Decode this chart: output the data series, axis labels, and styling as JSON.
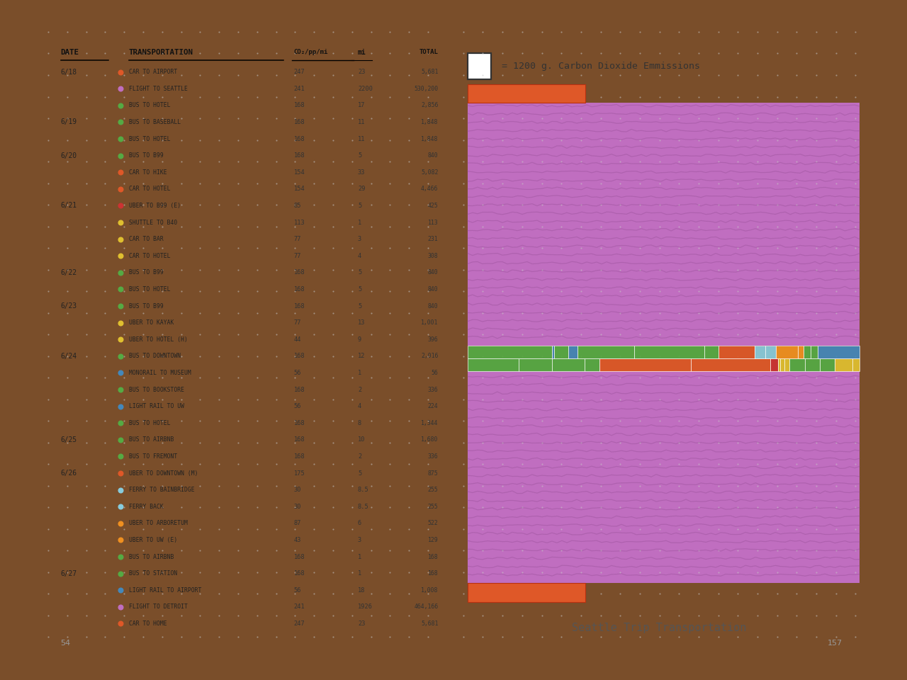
{
  "title": "= 1200 g. Carbon Dioxide Emmissions",
  "subtitle": "Seattle Trip Transportation",
  "page_left": "54",
  "page_right": "157",
  "wood_color": "#7a4e2a",
  "journal_bg": "#f7f6f2",
  "purple_fill": "#c06ec0",
  "purple_mid": "#a855a8",
  "purple_dark": "#884488",
  "orange_red": "#df5828",
  "trips": [
    {
      "date": "6/18",
      "transport": "CAR TO AIRPORT",
      "co2_mi": 247,
      "miles": 23,
      "total": 5681,
      "color": "#df5828"
    },
    {
      "date": "6/18",
      "transport": "FLIGHT TO SEATTLE",
      "co2_mi": 241,
      "miles": 2200,
      "total": 530200,
      "color": "#c06ec0"
    },
    {
      "date": "6/18",
      "transport": "BUS TO HOTEL",
      "co2_mi": 168,
      "miles": 17,
      "total": 2856,
      "color": "#55aa44"
    },
    {
      "date": "6/19",
      "transport": "BUS TO BASEBALL",
      "co2_mi": 168,
      "miles": 11,
      "total": 1848,
      "color": "#55aa44"
    },
    {
      "date": "6/19",
      "transport": "BUS TO HOTEL",
      "co2_mi": 168,
      "miles": 11,
      "total": 1848,
      "color": "#55aa44"
    },
    {
      "date": "6/20",
      "transport": "BUS TO B99",
      "co2_mi": 168,
      "miles": 5,
      "total": 840,
      "color": "#55aa44"
    },
    {
      "date": "6/20",
      "transport": "CAR TO HIKE",
      "co2_mi": 154,
      "miles": 33,
      "total": 5082,
      "color": "#df5828"
    },
    {
      "date": "6/20",
      "transport": "CAR TO HOTEL",
      "co2_mi": 154,
      "miles": 29,
      "total": 4466,
      "color": "#df5828"
    },
    {
      "date": "6/21",
      "transport": "UBER TO B99 (E)",
      "co2_mi": 85,
      "miles": 5,
      "total": 425,
      "color": "#cc3333"
    },
    {
      "date": "6/21",
      "transport": "SHUTTLE TO B40",
      "co2_mi": 113,
      "miles": 1,
      "total": 113,
      "color": "#e0c030"
    },
    {
      "date": "6/21",
      "transport": "CAR TO BAR",
      "co2_mi": 77,
      "miles": 3,
      "total": 231,
      "color": "#e0c030"
    },
    {
      "date": "6/21",
      "transport": "CAR TO HOTEL",
      "co2_mi": 77,
      "miles": 4,
      "total": 308,
      "color": "#e0c030"
    },
    {
      "date": "6/22",
      "transport": "BUS TO B99",
      "co2_mi": 168,
      "miles": 5,
      "total": 840,
      "color": "#55aa44"
    },
    {
      "date": "6/22",
      "transport": "BUS TO HOTEL",
      "co2_mi": 168,
      "miles": 5,
      "total": 840,
      "color": "#55aa44"
    },
    {
      "date": "6/23",
      "transport": "BUS TO B99",
      "co2_mi": 168,
      "miles": 5,
      "total": 840,
      "color": "#55aa44"
    },
    {
      "date": "6/23",
      "transport": "UBER TO KAYAK",
      "co2_mi": 77,
      "miles": 13,
      "total": 1001,
      "color": "#e0c030"
    },
    {
      "date": "6/23",
      "transport": "UBER TO HOTEL (H)",
      "co2_mi": 44,
      "miles": 9,
      "total": 396,
      "color": "#e0c030"
    },
    {
      "date": "6/24",
      "transport": "BUS TO DOWNTOWN",
      "co2_mi": 168,
      "miles": 12,
      "total": 2016,
      "color": "#55aa44"
    },
    {
      "date": "6/24",
      "transport": "MONORAIL TO MUSEUM",
      "co2_mi": 56,
      "miles": 1,
      "total": 56,
      "color": "#4488bb"
    },
    {
      "date": "6/24",
      "transport": "BUS TO BOOKSTORE",
      "co2_mi": 168,
      "miles": 2,
      "total": 336,
      "color": "#55aa44"
    },
    {
      "date": "6/24",
      "transport": "LIGHT RAIL TO UW",
      "co2_mi": 56,
      "miles": 4,
      "total": 224,
      "color": "#4488bb"
    },
    {
      "date": "6/24",
      "transport": "BUS TO HOTEL",
      "co2_mi": 168,
      "miles": 8,
      "total": 1344,
      "color": "#55aa44"
    },
    {
      "date": "6/25",
      "transport": "BUS TO AIRBNB",
      "co2_mi": 168,
      "miles": 10,
      "total": 1680,
      "color": "#55aa44"
    },
    {
      "date": "6/25",
      "transport": "BUS TO FREMONT",
      "co2_mi": 168,
      "miles": 2,
      "total": 336,
      "color": "#55aa44"
    },
    {
      "date": "6/26",
      "transport": "UBER TO DOWNTOWN (M)",
      "co2_mi": 175,
      "miles": 5,
      "total": 875,
      "color": "#df5828"
    },
    {
      "date": "6/26",
      "transport": "FERRY TO BAINBRIDGE",
      "co2_mi": 30,
      "miles": 8.5,
      "total": 255,
      "color": "#88ccdd"
    },
    {
      "date": "6/26",
      "transport": "FERRY BACK",
      "co2_mi": 30,
      "miles": 8.5,
      "total": 255,
      "color": "#88ccdd"
    },
    {
      "date": "6/26",
      "transport": "UBER TO ARBORETUM",
      "co2_mi": 87,
      "miles": 6,
      "total": 522,
      "color": "#f09020"
    },
    {
      "date": "6/26",
      "transport": "UBER TO UW (E)",
      "co2_mi": 43,
      "miles": 3,
      "total": 129,
      "color": "#f09020"
    },
    {
      "date": "6/26",
      "transport": "BUS TO AIRBNB",
      "co2_mi": 168,
      "miles": 1,
      "total": 168,
      "color": "#55aa44"
    },
    {
      "date": "6/27",
      "transport": "BUS TO STATION",
      "co2_mi": 168,
      "miles": 1,
      "total": 168,
      "color": "#55aa44"
    },
    {
      "date": "6/27",
      "transport": "LIGHT RAIL TO AIRPORT",
      "co2_mi": 56,
      "miles": 18,
      "total": 1008,
      "color": "#4488bb"
    },
    {
      "date": "6/27",
      "transport": "FLIGHT TO DETROIT",
      "co2_mi": 241,
      "miles": 1926,
      "total": 464166,
      "color": "#c06ec0"
    },
    {
      "date": "6/27",
      "transport": "CAR TO HOME",
      "co2_mi": 247,
      "miles": 23,
      "total": 5681,
      "color": "#df5828"
    }
  ]
}
